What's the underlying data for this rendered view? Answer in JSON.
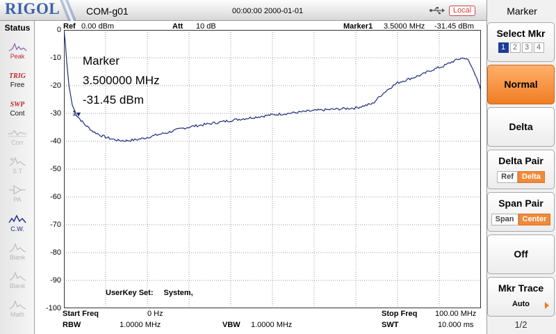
{
  "header": {
    "brand": "RIGOL",
    "device_name": "COM-g01",
    "datetime": "00:00:00 2000-01-01",
    "local_label": "Local",
    "usb_icon": "usb-icon"
  },
  "status": {
    "title": "Status",
    "items": [
      {
        "icon": "peak-icon",
        "label": "Peak"
      },
      {
        "icon": "trig-text",
        "icon_text": "TRIG",
        "label": "Free"
      },
      {
        "icon": "swp-text",
        "icon_text": "SWP",
        "label": "Cont"
      },
      {
        "icon": "corr-icon",
        "label": "Corr"
      },
      {
        "icon": "st-icon",
        "label": "S.T"
      },
      {
        "icon": "pa-icon",
        "label": "PA"
      },
      {
        "icon": "cw-icon",
        "label": "C.W."
      },
      {
        "icon": "blank-icon",
        "label": "Blank"
      },
      {
        "icon": "blank-icon",
        "label": "Blank"
      },
      {
        "icon": "math-icon",
        "label": "Math"
      }
    ]
  },
  "top_info": {
    "ref_label": "Ref",
    "ref_value": "0.00 dBm",
    "att_label": "Att",
    "att_value": "10 dB",
    "marker_label": "Marker1",
    "marker_freq": "3.5000 MHz",
    "marker_amp": "-31.45 dBm"
  },
  "marker_readout": {
    "title": "Marker",
    "freq": "3.500000 MHz",
    "amp": "-31.45 dBm"
  },
  "marker_flag": "1",
  "userkey": {
    "label": "UserKey Set:",
    "value": "System,"
  },
  "bottom_info": {
    "start_label": "Start Freq",
    "start_value": "0 Hz",
    "stop_label": "Stop Freq",
    "stop_value": "100.00 MHz",
    "rbw_label": "RBW",
    "rbw_value": "1.0000 MHz",
    "vbw_label": "VBW",
    "vbw_value": "1.0000 MHz",
    "swt_label": "SWT",
    "swt_value": "10.000 ms"
  },
  "menu": {
    "title": "Marker",
    "select_mkr": {
      "label": "Select Mkr",
      "numbers": [
        "1",
        "2",
        "3",
        "4"
      ],
      "selected": "1"
    },
    "normal_label": "Normal",
    "delta_label": "Delta",
    "delta_pair": {
      "label": "Delta Pair",
      "options": [
        "Ref",
        "Delta"
      ],
      "selected": "Delta"
    },
    "span_pair": {
      "label": "Span Pair",
      "options": [
        "Span",
        "Center"
      ],
      "selected": "Center"
    },
    "off_label": "Off",
    "mkr_trace": {
      "label": "Mkr Trace",
      "value": "Auto"
    },
    "page": "1/2",
    "accent_color": "#f07d24"
  },
  "chart_data": {
    "type": "line",
    "xlabel": "",
    "ylabel": "",
    "xlim": [
      0,
      100
    ],
    "ylim": [
      -100,
      0
    ],
    "y_ticks": [
      "0",
      "-10",
      "-20",
      "-30",
      "-40",
      "-50",
      "-60",
      "-70",
      "-80",
      "-90",
      "-100"
    ],
    "grid": true,
    "trace_color": "#1b2a7a",
    "series": [
      {
        "x": [
          0,
          0.3,
          0.7,
          1.2,
          2,
          3,
          3.5,
          5,
          7,
          9,
          11,
          13,
          15,
          17,
          19,
          21,
          23,
          25,
          28,
          31,
          35,
          40,
          45,
          50,
          55,
          60,
          65,
          70,
          74,
          76,
          78,
          80,
          83,
          86,
          88,
          91,
          93,
          95,
          96,
          97,
          99,
          100
        ],
        "y": [
          0,
          -4,
          -12,
          -20,
          -27,
          -30.5,
          -31.45,
          -34,
          -36.5,
          -38,
          -39,
          -39.7,
          -39.8,
          -39.5,
          -39,
          -38.2,
          -37.5,
          -36.8,
          -35.5,
          -34.6,
          -33.7,
          -32.5,
          -31.5,
          -30.5,
          -29.8,
          -29,
          -28.5,
          -28,
          -26.5,
          -23.5,
          -21,
          -19,
          -17.5,
          -16,
          -14.5,
          -13,
          -11.5,
          -10.3,
          -10,
          -11,
          -17,
          -22
        ]
      }
    ]
  }
}
